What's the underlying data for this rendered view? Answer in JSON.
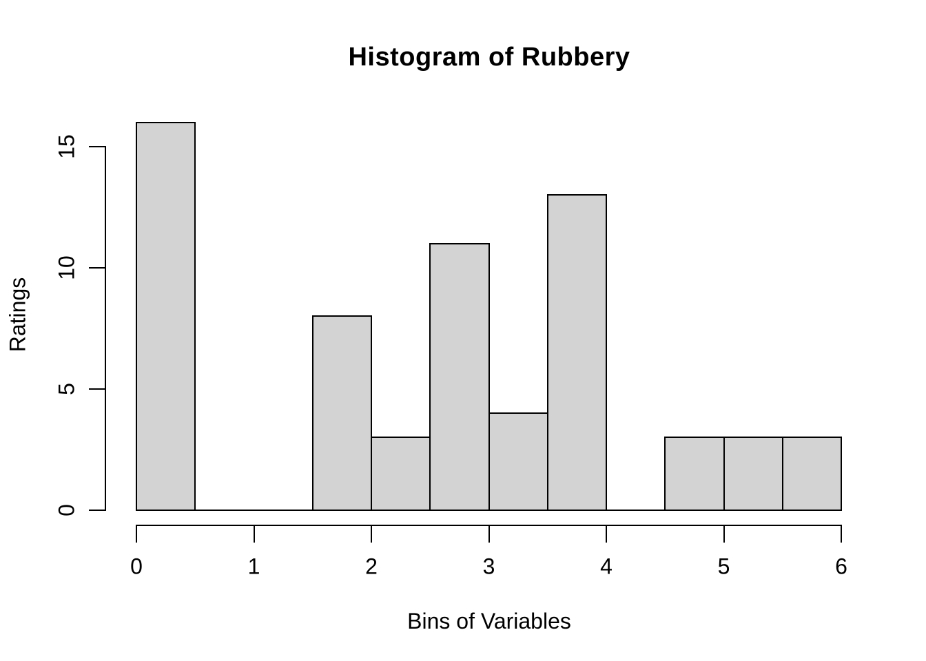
{
  "chart_data": {
    "type": "bar",
    "variant": "histogram",
    "title": "Histogram of Rubbery",
    "xlabel": "Bins of Variables",
    "ylabel": "Ratings",
    "breaks": [
      0,
      0.5,
      1,
      1.5,
      2,
      2.5,
      3,
      3.5,
      4,
      4.5,
      5,
      5.5,
      6
    ],
    "counts": [
      16,
      0,
      0,
      8,
      3,
      11,
      4,
      13,
      0,
      3,
      3,
      3
    ],
    "x_ticks": [
      0,
      1,
      2,
      3,
      4,
      5,
      6
    ],
    "y_ticks": [
      0,
      5,
      10,
      15
    ],
    "xlim": [
      0,
      6
    ],
    "ylim": [
      0,
      15
    ],
    "grid": false,
    "legend": "none",
    "bar_fill": "#d3d3d3",
    "bar_border": "#000000",
    "axis_color": "#000000",
    "text_color": "#000000",
    "background": "#ffffff"
  }
}
